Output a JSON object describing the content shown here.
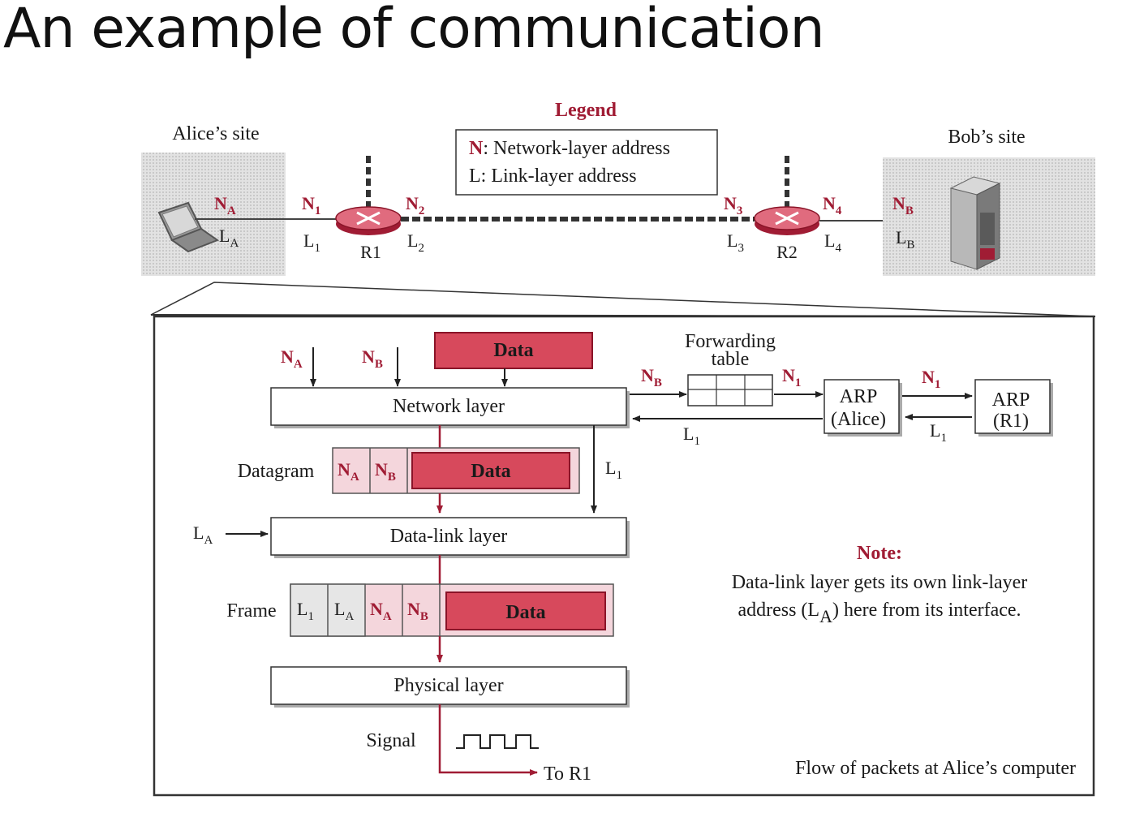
{
  "slide": {
    "title": "An example of communication"
  },
  "top": {
    "alice_site": "Alice’s site",
    "bob_site": "Bob’s site",
    "legend": {
      "heading": "Legend",
      "n_key": "N",
      "n_text": ": Network-layer address",
      "l_key": "L",
      "l_text": ": Link-layer address"
    },
    "routers": [
      "R1",
      "R2"
    ],
    "addr": {
      "NA": "N",
      "NA_sub": "A",
      "LA": "L",
      "LA_sub": "A",
      "N1": "N",
      "N1_sub": "1",
      "L1": "L",
      "L1_sub": "1",
      "N2": "N",
      "N2_sub": "2",
      "L2": "L",
      "L2_sub": "2",
      "N3": "N",
      "N3_sub": "3",
      "L3": "L",
      "L3_sub": "3",
      "N4": "N",
      "N4_sub": "4",
      "L4": "L",
      "L4_sub": "4",
      "NB": "N",
      "NB_sub": "B",
      "LB": "L",
      "LB_sub": "B"
    }
  },
  "detail": {
    "network_layer": "Network layer",
    "datalink_layer": "Data-link layer",
    "physical_layer": "Physical layer",
    "data": "Data",
    "datagram": "Datagram",
    "frame": "Frame",
    "signal": "Signal",
    "to_r1": "To R1",
    "forwarding_line1": "Forwarding",
    "forwarding_line2": "table",
    "arp_alice_line1": "ARP",
    "arp_alice_line2": "(Alice)",
    "arp_r1_line1": "ARP",
    "arp_r1_line2": "(R1)",
    "note_heading": "Note:",
    "note_line1": "Data-link layer gets its own link-layer",
    "note_line2a": "address (L",
    "note_line2_sub": "A",
    "note_line2b": ") here from its interface.",
    "caption": "Flow of packets at Alice’s computer"
  }
}
